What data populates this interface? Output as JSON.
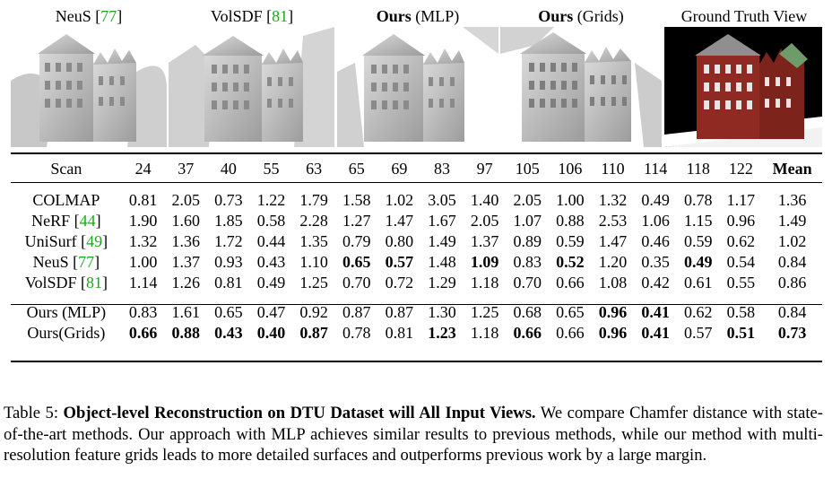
{
  "headers": [
    {
      "name": "NeuS",
      "cite": "77",
      "bold": false,
      "suffix": ""
    },
    {
      "name": "VolSDF",
      "cite": "81",
      "bold": false,
      "suffix": ""
    },
    {
      "name": "Ours",
      "cite": "",
      "bold": true,
      "suffix": " (MLP)"
    },
    {
      "name": "Ours",
      "cite": "",
      "bold": true,
      "suffix": " (Grids)"
    },
    {
      "name": "Ground Truth View",
      "cite": "",
      "bold": false,
      "suffix": ""
    }
  ],
  "table": {
    "header": [
      "Scan",
      "24",
      "37",
      "40",
      "55",
      "63",
      "65",
      "69",
      "83",
      "97",
      "105",
      "106",
      "110",
      "114",
      "118",
      "122",
      "Mean"
    ],
    "baselines": [
      {
        "method": "COLMAP",
        "cite": "",
        "values": [
          "0.81",
          "2.05",
          "0.73",
          "1.22",
          "1.79",
          "1.58",
          "1.02",
          "3.05",
          "1.40",
          "2.05",
          "1.00",
          "1.32",
          "0.49",
          "0.78",
          "1.17",
          "1.36"
        ],
        "bold": []
      },
      {
        "method": "NeRF",
        "cite": "44",
        "values": [
          "1.90",
          "1.60",
          "1.85",
          "0.58",
          "2.28",
          "1.27",
          "1.47",
          "1.67",
          "2.05",
          "1.07",
          "0.88",
          "2.53",
          "1.06",
          "1.15",
          "0.96",
          "1.49"
        ],
        "bold": []
      },
      {
        "method": "UniSurf",
        "cite": "49",
        "values": [
          "1.32",
          "1.36",
          "1.72",
          "0.44",
          "1.35",
          "0.79",
          "0.80",
          "1.49",
          "1.37",
          "0.89",
          "0.59",
          "1.47",
          "0.46",
          "0.59",
          "0.62",
          "1.02"
        ],
        "bold": []
      },
      {
        "method": "NeuS",
        "cite": "77",
        "values": [
          "1.00",
          "1.37",
          "0.93",
          "0.43",
          "1.10",
          "0.65",
          "0.57",
          "1.48",
          "1.09",
          "0.83",
          "0.52",
          "1.20",
          "0.35",
          "0.49",
          "0.54",
          "0.84"
        ],
        "bold": [
          5,
          6,
          8,
          10,
          13
        ]
      },
      {
        "method": "VolSDF",
        "cite": "81",
        "values": [
          "1.14",
          "1.26",
          "0.81",
          "0.49",
          "1.25",
          "0.70",
          "0.72",
          "1.29",
          "1.18",
          "0.70",
          "0.66",
          "1.08",
          "0.42",
          "0.61",
          "0.55",
          "0.86"
        ],
        "bold": []
      }
    ],
    "ours": [
      {
        "method": "Ours (MLP)",
        "cite": "",
        "values": [
          "0.83",
          "1.61",
          "0.65",
          "0.47",
          "0.92",
          "0.87",
          "0.87",
          "1.30",
          "1.25",
          "0.68",
          "0.65",
          "0.96",
          "0.41",
          "0.62",
          "0.58",
          "0.84"
        ],
        "bold": [
          11,
          12
        ]
      },
      {
        "method": "Ours(Grids)",
        "cite": "",
        "values": [
          "0.66",
          "0.88",
          "0.43",
          "0.40",
          "0.87",
          "0.78",
          "0.81",
          "1.23",
          "1.18",
          "0.66",
          "0.66",
          "0.96",
          "0.41",
          "0.57",
          "0.51",
          "0.73"
        ],
        "bold": [
          0,
          1,
          2,
          3,
          4,
          7,
          9,
          11,
          12,
          14,
          15
        ]
      }
    ]
  },
  "caption": {
    "label": "Table 5: ",
    "title": "Object-level Reconstruction on DTU Dataset will All Input Views.",
    "body": " We compare Chamfer distance with state-of-the-art methods. Our approach with MLP achieves similar results to previous methods, while our method with multi-resolution feature grids leads to more detailed surfaces and outperforms previous work by a large margin."
  },
  "colors": {
    "cite": "#1aaa1a",
    "mesh": "#bdbdbd",
    "brick": "#8e2a22"
  }
}
